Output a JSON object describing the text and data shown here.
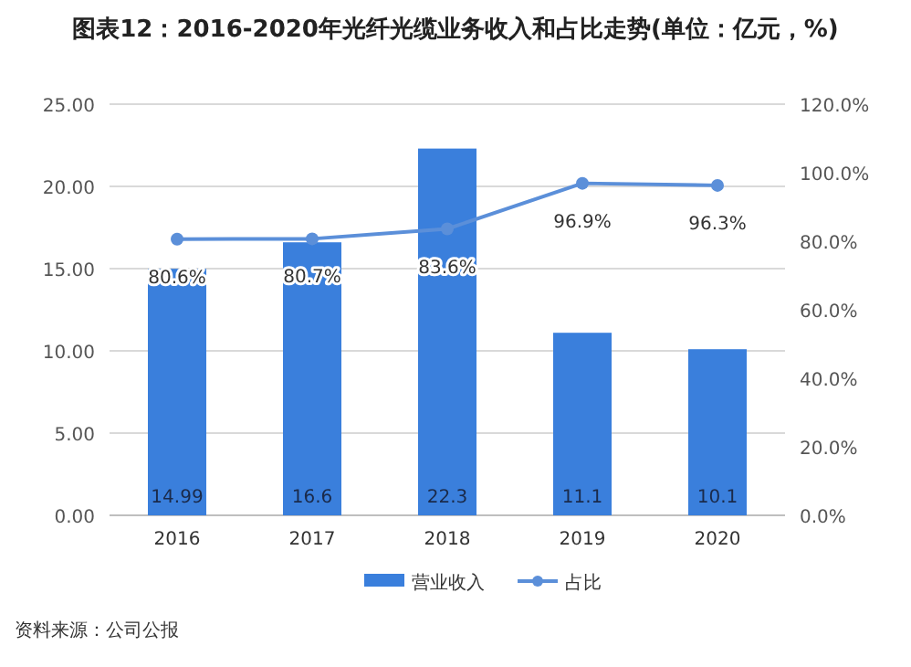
{
  "chart_data": {
    "type": "bar",
    "title": "图表12：2016-2020年光纤光缆业务收入和占比走势(单位：亿元，%)",
    "categories": [
      "2016",
      "2017",
      "2018",
      "2019",
      "2020"
    ],
    "series": [
      {
        "name": "营业收入",
        "color": "#3a7fdc",
        "values": [
          14.99,
          16.6,
          22.3,
          11.1,
          10.1
        ],
        "value_labels": [
          "14.99",
          "16.6",
          "22.3",
          "11.1",
          "10.1"
        ]
      },
      {
        "name": "占比",
        "type": "line",
        "axis": "y2",
        "color": "#5b8fd9",
        "marker": "circle",
        "values": [
          80.6,
          80.7,
          83.6,
          96.9,
          96.3
        ],
        "value_labels": [
          "80.6%",
          "80.7%",
          "83.6%",
          "96.9%",
          "96.3%"
        ]
      }
    ],
    "ylim": [
      0,
      25
    ],
    "yticks": [
      {
        "value": 0,
        "label": "0.00"
      },
      {
        "value": 5,
        "label": "5.00"
      },
      {
        "value": 10,
        "label": "10.00"
      },
      {
        "value": 15,
        "label": "15.00"
      },
      {
        "value": 20,
        "label": "20.00"
      },
      {
        "value": 25,
        "label": "25.00"
      }
    ],
    "y2lim": [
      0,
      120
    ],
    "y2ticks": [
      {
        "value": 0,
        "label": "0.0%"
      },
      {
        "value": 20,
        "label": "20.0%"
      },
      {
        "value": 40,
        "label": "40.0%"
      },
      {
        "value": 60,
        "label": "60.0%"
      },
      {
        "value": 80,
        "label": "80.0%"
      },
      {
        "value": 100,
        "label": "100.0%"
      },
      {
        "value": 120,
        "label": "120.0%"
      }
    ],
    "grid": "y",
    "legend": "bottom",
    "annotations": [
      "资料来源：公司公报"
    ]
  }
}
